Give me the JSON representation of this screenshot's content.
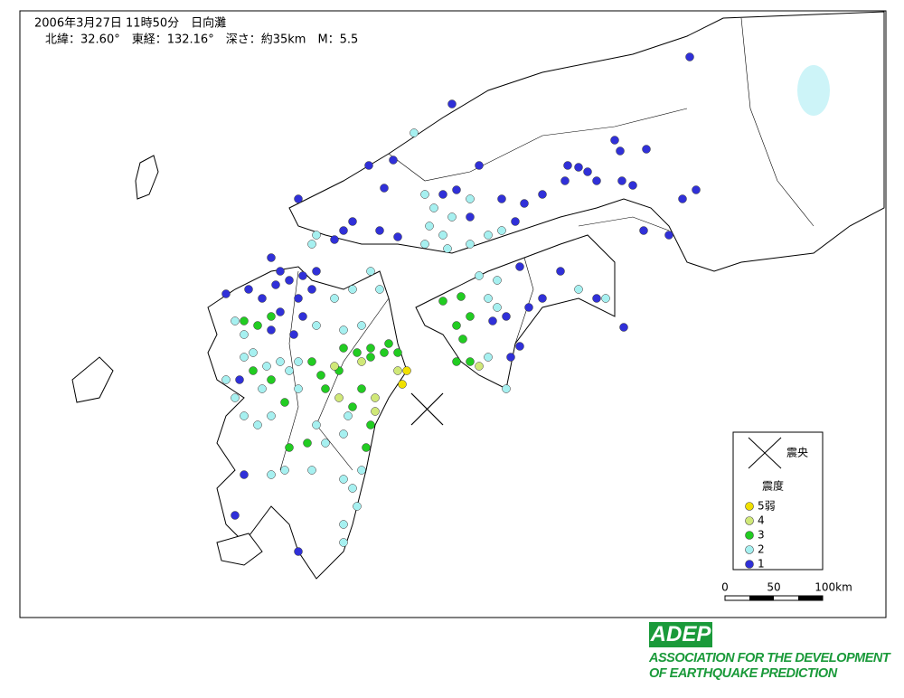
{
  "header": {
    "line1": "2006年3月27日 11時50分　日向灘",
    "line2": "北緯：32.60°　東経：132.16°　深さ：約35km　M：5.5"
  },
  "legend": {
    "epicenter": "震央",
    "intensity_title": "震度",
    "items": [
      {
        "label": "5弱",
        "color": "#f0e000"
      },
      {
        "label": "4",
        "color": "#d0e878"
      },
      {
        "label": "3",
        "color": "#22cc22"
      },
      {
        "label": "2",
        "color": "#a6f0f0"
      },
      {
        "label": "1",
        "color": "#3030d8"
      }
    ]
  },
  "scale": {
    "labels": [
      "0",
      "50",
      "100km"
    ]
  },
  "logo": {
    "mark": "ADEP",
    "lines": [
      "ASSOCIATION  FOR THE DEVELOPMENT",
      "OF EARTHQUAKE PREDICTION"
    ]
  }
}
